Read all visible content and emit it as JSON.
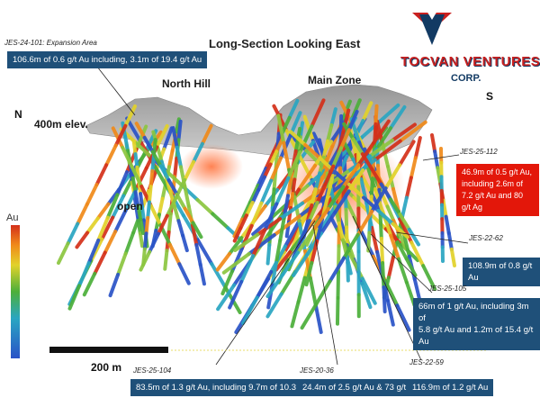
{
  "title": "Long-Section Looking East",
  "logo": {
    "line1": "TOCVAN VENTURES",
    "line2": "CORP."
  },
  "zones": {
    "north_hill": "North Hill",
    "main_zone": "Main Zone"
  },
  "directions": {
    "north": "N",
    "south": "S"
  },
  "elevation_label": "400m elev.",
  "open_label": "open",
  "scale_bar": {
    "label": "200 m"
  },
  "legend": {
    "title": "Au"
  },
  "callouts": [
    {
      "hole_id": "JES-24-101: Expansion Area",
      "text": "106.6m of 0.6 g/t Au including, 3.1m of 19.4 g/t Au"
    },
    {
      "hole_id": "JES-25-112",
      "text_lines": [
        "46.9m of 0.5 g/t Au,",
        "including 2.6m of",
        "7.2 g/t Au and 80 g/t Ag"
      ]
    },
    {
      "hole_id": "JES-22-62",
      "text": "108.9m of 0.8 g/t Au"
    },
    {
      "hole_id": "JES-25-105",
      "text_lines": [
        "66m of 1 g/t Au, including 3m of",
        "5.8 g/t Au and 1.2m of 15.4 g/t Au"
      ]
    },
    {
      "hole_id": "JES-25-104",
      "text": "83.5m of 1.3 g/t Au, including 9.7m of 10.3 g/t Au"
    },
    {
      "hole_id": "JES-20-36",
      "text": "24.4m of 2.5 g/t Au & 73 g/t Ag"
    },
    {
      "hole_id": "JES-22-59",
      "text": "116.9m of 1.2 g/t Au"
    }
  ],
  "colors": {
    "callout_box": "#1f5079",
    "highlight_box": "#e3170a",
    "brand_red": "#c9201f",
    "brand_navy": "#123a63"
  }
}
